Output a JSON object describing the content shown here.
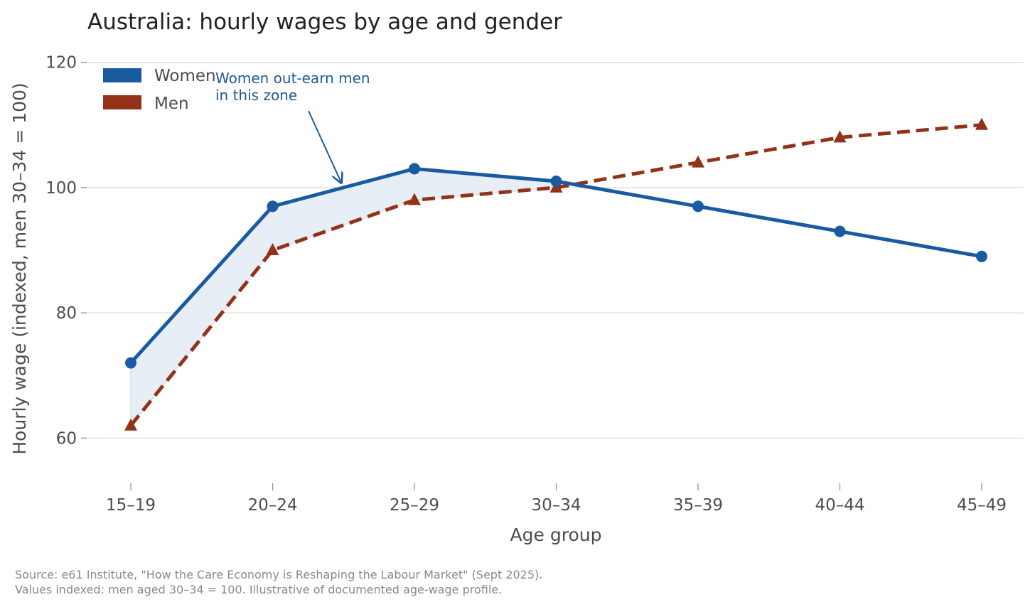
{
  "chart_data": {
    "type": "line",
    "title": "Australia: hourly wages by age and gender",
    "xlabel": "Age group",
    "ylabel": "Hourly wage (indexed, men 30–34 = 100)",
    "categories": [
      "15–19",
      "20–24",
      "25–29",
      "30–34",
      "35–39",
      "40–44",
      "45–49"
    ],
    "ylim": [
      53,
      122
    ],
    "yticks": [
      60,
      80,
      100,
      120
    ],
    "grid": "horizontal",
    "legend_position": "top-left",
    "series": [
      {
        "name": "Women",
        "values": [
          72,
          97,
          103,
          101,
          97,
          93,
          89
        ],
        "color": "#1a5aa0",
        "line_style": "solid",
        "marker": "circle"
      },
      {
        "name": "Men",
        "values": [
          62,
          90,
          98,
          100,
          104,
          108,
          110
        ],
        "color": "#923219",
        "line_style": "dashed",
        "marker": "triangle"
      }
    ],
    "shaded_region": {
      "between": [
        "Women",
        "Men"
      ],
      "from_category": "15–19",
      "to_category": "30–34",
      "color": "#e8eef6"
    },
    "annotation": {
      "lines": [
        "Women out-earn men",
        "in this zone"
      ],
      "target_category_position": 1.5,
      "target_value": 100.3
    },
    "source_lines": [
      "Source: e61 Institute, \"How the Care Economy is Reshaping the Labour Market\" (Sept 2025).",
      "Values indexed: men aged 30–34 = 100. Illustrative of documented age-wage profile."
    ]
  }
}
